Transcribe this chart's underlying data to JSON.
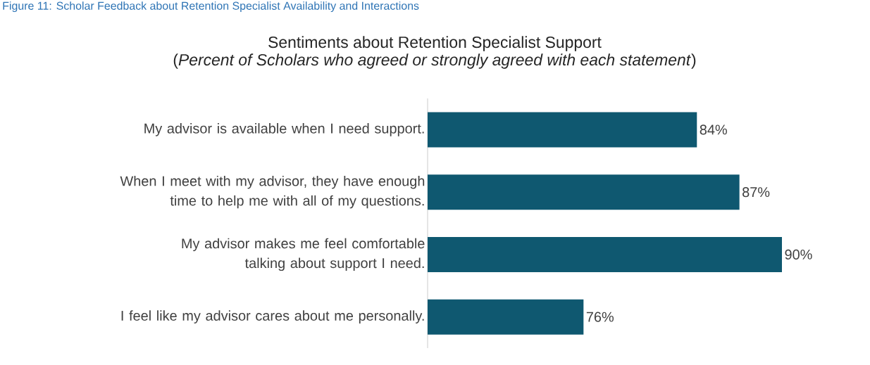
{
  "chart_data": {
    "type": "bar",
    "orientation": "horizontal",
    "title": "Sentiments about Retention Specialist Support",
    "subtitle": "(*Percent of Scholars who agreed or strongly agreed with each statement*)",
    "annotations": [
      "Figure 11: Scholar Feedback about Retention Specialist Availability and Interactions"
    ],
    "categories": [
      "My advisor is available when I need support.",
      "When I meet with my advisor, they have enough time to help me with all of my questions.",
      "My advisor makes me feel comfortable talking about support I need.",
      "I feel like my advisor cares about me personally."
    ],
    "values": [
      84,
      87,
      90,
      76
    ],
    "value_labels": [
      "84%",
      "87%",
      "90%",
      "76%"
    ],
    "color": "#0f5870",
    "xlim": [
      65,
      90
    ]
  }
}
